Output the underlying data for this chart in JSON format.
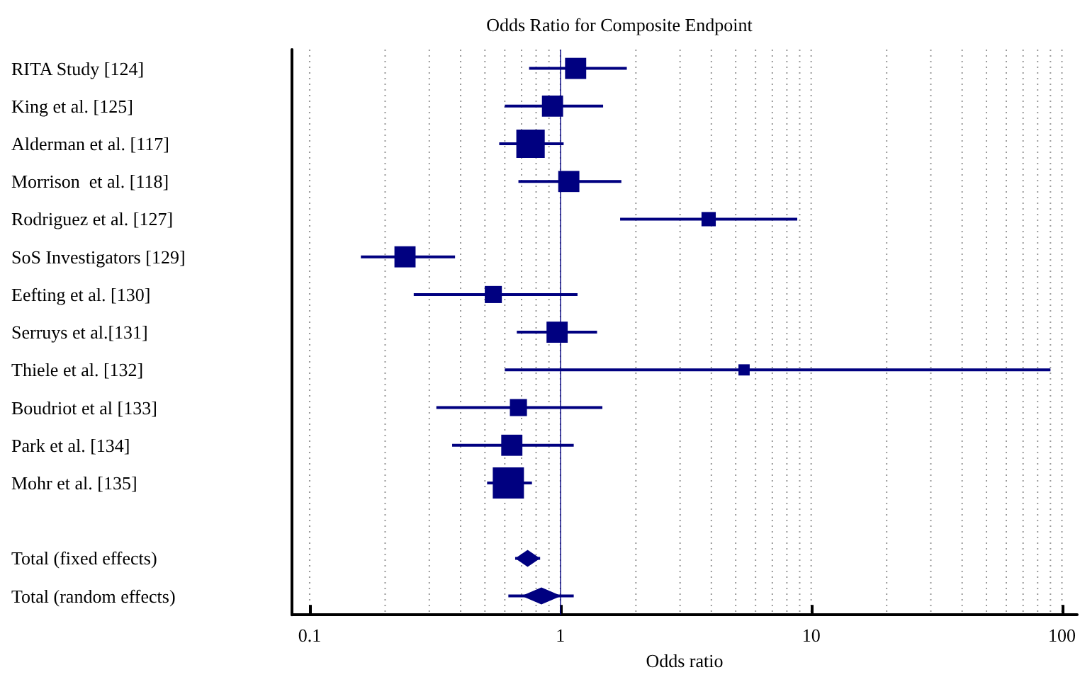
{
  "chart_data": {
    "type": "scatter",
    "title": "Odds Ratio for Composite Endpoint",
    "xlabel": "Odds ratio",
    "orientation": "horizontal",
    "log": "x",
    "categories": [
      "RITA Study [124]",
      "King et al. [125]",
      "Alderman et al. [117]",
      "Morrison  et al. [118]",
      "Rodriguez et al. [127]",
      "SoS Investigators [129]",
      "Eefting et al. [130]",
      "Serruys et al.[131]",
      "Thiele et al. [132]",
      "Boudriot et al [133]",
      "Park et al. [134]",
      "Mohr et al. [135]",
      null,
      "Total (fixed effects)",
      "Total (random effects)"
    ],
    "series": [
      {
        "type": "bubble",
        "marker": "square",
        "color": "#000080",
        "values": [
          1.15,
          0.93,
          0.76,
          1.08,
          3.9,
          0.24,
          0.54,
          0.97,
          5.4,
          0.68,
          0.64,
          0.62,
          null,
          null,
          null
        ],
        "sizes": [
          0.46,
          0.46,
          0.83,
          0.46,
          0.21,
          0.46,
          0.3,
          0.46,
          0.13,
          0.3,
          0.46,
          1,
          null,
          null,
          null
        ],
        "errors": [
          [
            0.75,
            1.84
          ],
          [
            0.6,
            1.48
          ],
          [
            0.57,
            1.03
          ],
          [
            0.68,
            1.75
          ],
          [
            1.73,
            8.8
          ],
          [
            0.16,
            0.38
          ],
          [
            0.26,
            1.17
          ],
          [
            0.67,
            1.4
          ],
          [
            0.6,
            90
          ],
          [
            0.32,
            1.47
          ],
          [
            0.37,
            1.13
          ],
          [
            0.51,
            0.77
          ],
          null,
          null,
          null
        ]
      },
      {
        "type": "scatter",
        "marker": "diamond",
        "color": "#000080",
        "values": [
          null,
          null,
          null,
          null,
          null,
          null,
          null,
          null,
          null,
          null,
          null,
          null,
          null,
          0.74,
          0.84
        ],
        "errors": [
          null,
          null,
          null,
          null,
          null,
          null,
          null,
          null,
          null,
          null,
          null,
          null,
          null,
          [
            0.66,
            0.83
          ],
          [
            0.62,
            1.13
          ]
        ]
      }
    ],
    "xlim": [
      0.085,
      115
    ],
    "xticks": [
      0.1,
      {
        "value": 0.2,
        "label": null
      },
      {
        "value": 0.3,
        "label": null
      },
      {
        "value": 0.4,
        "label": null
      },
      {
        "value": 0.5,
        "label": null
      },
      {
        "value": 0.6,
        "label": null
      },
      {
        "value": 0.7,
        "label": null
      },
      {
        "value": 0.8,
        "label": null
      },
      {
        "value": 0.9,
        "label": null
      },
      1,
      {
        "value": 2,
        "label": null
      },
      {
        "value": 3,
        "label": null
      },
      {
        "value": 4,
        "label": null
      },
      {
        "value": 5,
        "label": null
      },
      {
        "value": 6,
        "label": null
      },
      {
        "value": 7,
        "label": null
      },
      {
        "value": 8,
        "label": null
      },
      {
        "value": 9,
        "label": null
      },
      10,
      {
        "value": 20,
        "label": null
      },
      {
        "value": 30,
        "label": null
      },
      {
        "value": 40,
        "label": null
      },
      {
        "value": 50,
        "label": null
      },
      {
        "value": 60,
        "label": null
      },
      {
        "value": 70,
        "label": null
      },
      {
        "value": 80,
        "label": null
      },
      {
        "value": 90,
        "label": null
      },
      100
    ],
    "grid": "x",
    "ref_lines": [
      {
        "axis": "x",
        "value": 1,
        "color": "#000080",
        "line_style": "solid"
      }
    ]
  }
}
